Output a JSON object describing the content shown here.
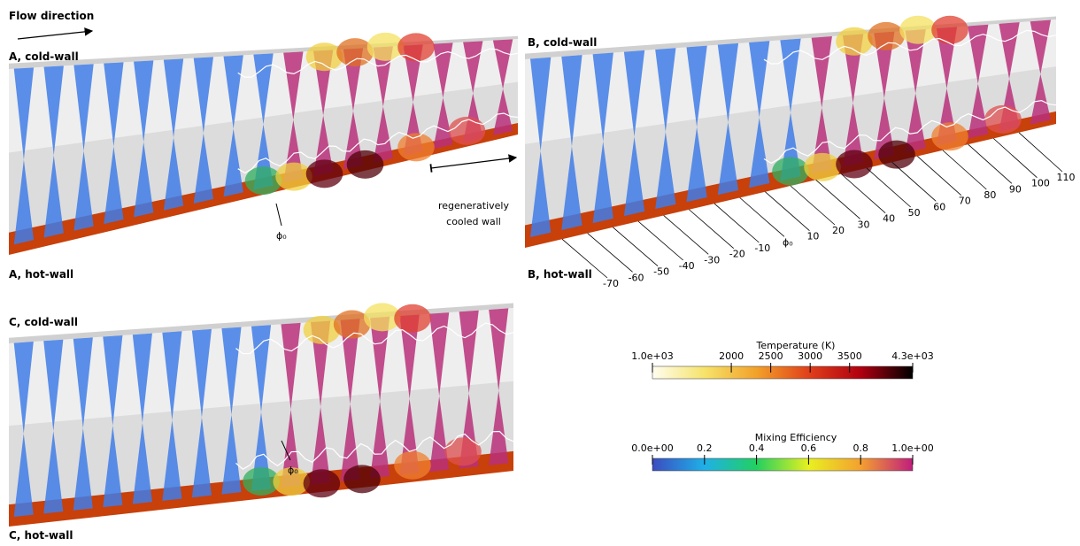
{
  "labels": {
    "flow_direction": "Flow direction",
    "regen": [
      "regeneratively",
      "cooled wall"
    ],
    "phi_a": "ϕ₀",
    "phi_b": "ϕ₀",
    "phi_c": "ϕ₀"
  },
  "panels": [
    {
      "cold": "A, cold-wall",
      "hot": "A, hot-wall"
    },
    {
      "cold": "B, cold-wall",
      "hot": "B, hot-wall"
    },
    {
      "cold": "C, cold-wall",
      "hot": "C, hot-wall"
    }
  ],
  "angles": [
    -70,
    -60,
    -50,
    -40,
    -30,
    -20,
    -10,
    10,
    20,
    30,
    40,
    50,
    60,
    70,
    80,
    90,
    100,
    110
  ],
  "colorbars": [
    {
      "title": "Temperature (K)",
      "range": [
        1000,
        4300
      ],
      "ticks": [
        {
          "value": 1000,
          "label": "1.0e+03"
        },
        2000,
        2500,
        3000,
        3500,
        {
          "value": 4300,
          "label": "4.3e+03"
        }
      ],
      "colors": [
        "#fffdf0",
        "#f6e36a",
        "#f2a12a",
        "#e0401a",
        "#b00010",
        "#000000"
      ]
    },
    {
      "title": "Mixing Efficiency",
      "range": [
        0,
        1
      ],
      "ticks": [
        {
          "value": 0,
          "label": "0.0e+00"
        },
        0.2,
        0.4,
        0.6,
        0.8,
        {
          "value": 1,
          "label": "1.0e+00"
        }
      ],
      "colors": [
        "#3b4cc0",
        "#1fb0e8",
        "#22d060",
        "#e8f020",
        "#f4a030",
        "#c01d7d"
      ]
    }
  ]
}
